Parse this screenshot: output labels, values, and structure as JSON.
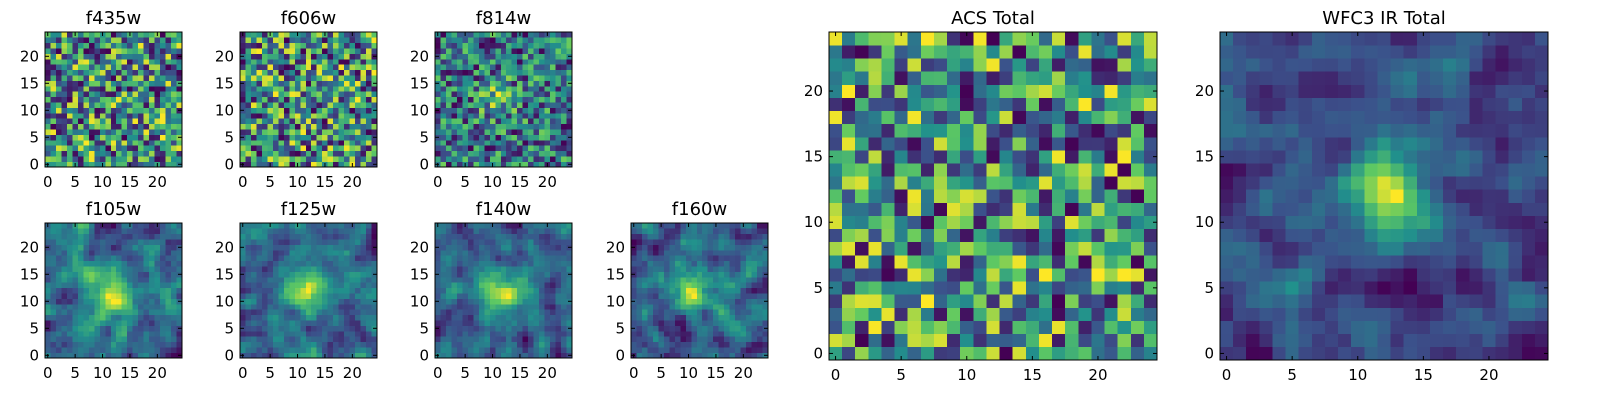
{
  "colormap": "viridis",
  "colormap_stops": [
    "#440154",
    "#3b528b",
    "#21918c",
    "#5ec962",
    "#fde725"
  ],
  "frame_color": "#000000",
  "background": "#ffffff",
  "chart_data": [
    {
      "type": "heatmap",
      "title": "f435w",
      "shape": [
        25,
        25
      ],
      "xlim": [
        -0.5,
        24.5
      ],
      "ylim": [
        -0.5,
        24.5
      ],
      "xticks": [
        0,
        5,
        10,
        15,
        20
      ],
      "yticks": [
        0,
        5,
        10,
        15,
        20
      ],
      "xtick_labels": [
        "0",
        "5",
        "10",
        "15",
        "20"
      ],
      "ytick_labels": [
        "0",
        "5",
        "10",
        "15",
        "20"
      ],
      "origin": "lower",
      "texture": "pixel noise",
      "smoothness": 0,
      "seed": 11,
      "hotspots": []
    },
    {
      "type": "heatmap",
      "title": "f606w",
      "shape": [
        25,
        25
      ],
      "xlim": [
        -0.5,
        24.5
      ],
      "ylim": [
        -0.5,
        24.5
      ],
      "xticks": [
        0,
        5,
        10,
        15,
        20
      ],
      "yticks": [
        0,
        5,
        10,
        15,
        20
      ],
      "xtick_labels": [
        "0",
        "5",
        "10",
        "15",
        "20"
      ],
      "ytick_labels": [
        "0",
        "5",
        "10",
        "15",
        "20"
      ],
      "origin": "lower",
      "texture": "pixel noise",
      "smoothness": 0,
      "seed": 23,
      "hotspots": []
    },
    {
      "type": "heatmap",
      "title": "f814w",
      "shape": [
        25,
        25
      ],
      "xlim": [
        -0.5,
        24.5
      ],
      "ylim": [
        -0.5,
        24.5
      ],
      "xticks": [
        0,
        5,
        10,
        15,
        20
      ],
      "yticks": [
        0,
        5,
        10,
        15,
        20
      ],
      "xtick_labels": [
        "0",
        "5",
        "10",
        "15",
        "20"
      ],
      "ytick_labels": [
        "0",
        "5",
        "10",
        "15",
        "20"
      ],
      "origin": "lower",
      "texture": "pixel noise",
      "smoothness": 0,
      "seed": 37,
      "hotspots": [
        [
          11,
          12,
          2.5,
          0.35
        ]
      ]
    },
    {
      "type": "heatmap",
      "title": "f105w",
      "shape": [
        25,
        25
      ],
      "xlim": [
        -0.5,
        24.5
      ],
      "ylim": [
        -0.5,
        24.5
      ],
      "xticks": [
        0,
        5,
        10,
        15,
        20
      ],
      "yticks": [
        0,
        5,
        10,
        15,
        20
      ],
      "xtick_labels": [
        "0",
        "5",
        "10",
        "15",
        "20"
      ],
      "ytick_labels": [
        "0",
        "5",
        "10",
        "15",
        "20"
      ],
      "origin": "lower",
      "texture": "smooth noise",
      "smoothness": 1,
      "seed": 41,
      "hotspots": [
        [
          12,
          11,
          3,
          0.55
        ]
      ]
    },
    {
      "type": "heatmap",
      "title": "f125w",
      "shape": [
        25,
        25
      ],
      "xlim": [
        -0.5,
        24.5
      ],
      "ylim": [
        -0.5,
        24.5
      ],
      "xticks": [
        0,
        5,
        10,
        15,
        20
      ],
      "yticks": [
        0,
        5,
        10,
        15,
        20
      ],
      "xtick_labels": [
        "0",
        "5",
        "10",
        "15",
        "20"
      ],
      "ytick_labels": [
        "0",
        "5",
        "10",
        "15",
        "20"
      ],
      "origin": "lower",
      "texture": "smooth noise",
      "smoothness": 1,
      "seed": 53,
      "hotspots": [
        [
          12,
          12,
          3,
          0.5
        ]
      ]
    },
    {
      "type": "heatmap",
      "title": "f140w",
      "shape": [
        25,
        25
      ],
      "xlim": [
        -0.5,
        24.5
      ],
      "ylim": [
        -0.5,
        24.5
      ],
      "xticks": [
        0,
        5,
        10,
        15,
        20
      ],
      "yticks": [
        0,
        5,
        10,
        15,
        20
      ],
      "xtick_labels": [
        "0",
        "5",
        "10",
        "15",
        "20"
      ],
      "ytick_labels": [
        "0",
        "5",
        "10",
        "15",
        "20"
      ],
      "origin": "lower",
      "texture": "smooth noise",
      "smoothness": 1,
      "seed": 67,
      "hotspots": [
        [
          12,
          12,
          3,
          0.5
        ]
      ]
    },
    {
      "type": "heatmap",
      "title": "f160w",
      "shape": [
        25,
        25
      ],
      "xlim": [
        -0.5,
        24.5
      ],
      "ylim": [
        -0.5,
        24.5
      ],
      "xticks": [
        0,
        5,
        10,
        15,
        20
      ],
      "yticks": [
        0,
        5,
        10,
        15,
        20
      ],
      "xtick_labels": [
        "0",
        "5",
        "10",
        "15",
        "20"
      ],
      "ytick_labels": [
        "0",
        "5",
        "10",
        "15",
        "20"
      ],
      "origin": "lower",
      "texture": "smooth noise",
      "smoothness": 1,
      "seed": 79,
      "hotspots": [
        [
          11,
          12,
          3,
          0.5
        ]
      ]
    },
    {
      "type": "heatmap",
      "title": "ACS Total",
      "shape": [
        25,
        25
      ],
      "xlim": [
        -0.5,
        24.5
      ],
      "ylim": [
        -0.5,
        24.5
      ],
      "xticks": [
        0,
        5,
        10,
        15,
        20
      ],
      "yticks": [
        0,
        5,
        10,
        15,
        20
      ],
      "xtick_labels": [
        "0",
        "5",
        "10",
        "15",
        "20"
      ],
      "ytick_labels": [
        "0",
        "5",
        "10",
        "15",
        "20"
      ],
      "origin": "lower",
      "texture": "pixel noise",
      "smoothness": 0,
      "seed": 97,
      "hotspots": []
    },
    {
      "type": "heatmap",
      "title": "WFC3 IR Total",
      "shape": [
        25,
        25
      ],
      "xlim": [
        -0.5,
        24.5
      ],
      "ylim": [
        -0.5,
        24.5
      ],
      "xticks": [
        0,
        5,
        10,
        15,
        20
      ],
      "yticks": [
        0,
        5,
        10,
        15,
        20
      ],
      "xtick_labels": [
        "0",
        "5",
        "10",
        "15",
        "20"
      ],
      "ytick_labels": [
        "0",
        "5",
        "10",
        "15",
        "20"
      ],
      "origin": "lower",
      "texture": "smooth noise",
      "smoothness": 1,
      "seed": 131,
      "hotspots": [
        [
          12,
          12,
          2.2,
          0.9
        ]
      ]
    }
  ]
}
